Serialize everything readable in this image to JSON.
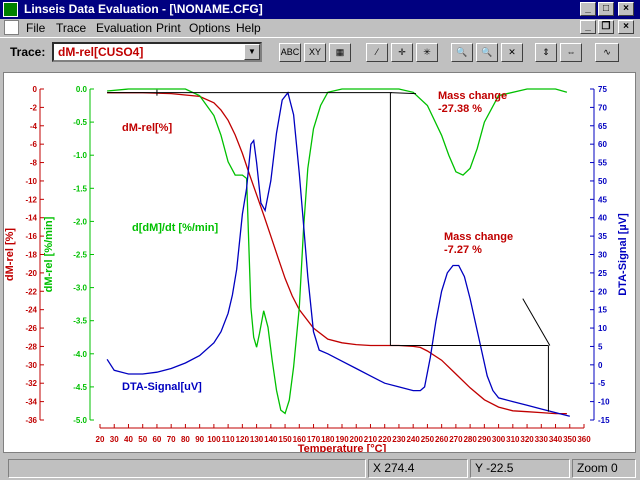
{
  "window": {
    "title": "Linseis Data Evaluation - [\\NONAME.CFG]"
  },
  "menu": [
    "File",
    "Trace",
    "Evaluation",
    "Print",
    "Options",
    "Help"
  ],
  "toolbar": {
    "trace_label": "Trace:",
    "trace_value": "dM-rel[CUSO4]",
    "buttons": [
      "abc-button",
      "xy-button",
      "hatch-button",
      "line-button",
      "cross-plus-button",
      "star-cross-button",
      "zoom-in-button",
      "zoom-1-button",
      "zoom-out-button",
      "fit-vertical-button",
      "fit-horizontal-button",
      "curve-settings-button"
    ]
  },
  "chart_data": {
    "type": "line",
    "xlabel": "Temperature [°C]",
    "xlim": [
      20,
      360
    ],
    "xticks": [
      20,
      30,
      40,
      50,
      60,
      70,
      80,
      90,
      100,
      110,
      120,
      130,
      140,
      150,
      160,
      170,
      180,
      190,
      200,
      210,
      220,
      230,
      240,
      250,
      260,
      270,
      280,
      290,
      300,
      310,
      320,
      330,
      340,
      350,
      360
    ],
    "axes": [
      {
        "id": "dm",
        "label": "dM-rel  [%]",
        "color": "#c00000",
        "lim": [
          -36,
          0
        ],
        "ticks": [
          0,
          -2,
          -4,
          -6,
          -8,
          -10,
          -12,
          -14,
          -16,
          -18,
          -20,
          -22,
          -24,
          -26,
          -28,
          -30,
          -32,
          -34,
          -36
        ]
      },
      {
        "id": "ddm",
        "label": "dM-rel [%/min]",
        "color": "#00c000",
        "lim": [
          -5.0,
          0.0
        ],
        "ticks": [
          0.0,
          -0.5,
          -1.0,
          -1.5,
          -2.0,
          -2.5,
          -3.0,
          -3.5,
          -4.0,
          -4.5,
          -5.0
        ]
      },
      {
        "id": "dta",
        "label": "DTA-Signal  [µV]",
        "color": "#0000c0",
        "lim": [
          -15,
          75
        ],
        "ticks": [
          75,
          70,
          65,
          60,
          55,
          50,
          45,
          40,
          35,
          30,
          25,
          20,
          15,
          10,
          5,
          0,
          -5,
          -10,
          -15
        ]
      }
    ],
    "series": [
      {
        "name": "dM-rel[%]",
        "axis": "dm",
        "color": "#c00000",
        "x": [
          25,
          50,
          70,
          90,
          100,
          105,
          110,
          115,
          120,
          125,
          130,
          135,
          140,
          145,
          150,
          155,
          160,
          170,
          180,
          190,
          200,
          210,
          220,
          230,
          240,
          245,
          250,
          260,
          270,
          280,
          290,
          300,
          310,
          320,
          330,
          340,
          348
        ],
        "y": [
          -0.4,
          -0.4,
          -0.5,
          -0.8,
          -1.5,
          -2.3,
          -3.4,
          -5,
          -7,
          -9.3,
          -11.5,
          -13.7,
          -16,
          -18.3,
          -20.6,
          -22.5,
          -24,
          -26,
          -27.2,
          -27.6,
          -27.8,
          -27.9,
          -27.9,
          -27.9,
          -28,
          -28.1,
          -28.5,
          -29.5,
          -31,
          -32.5,
          -33.8,
          -34.6,
          -35,
          -35.1,
          -35.2,
          -35.3,
          -35.3
        ]
      },
      {
        "name": "d[dM]/dt [%/min]",
        "axis": "ddm",
        "color": "#00c000",
        "x": [
          25,
          40,
          60,
          80,
          90,
          100,
          105,
          110,
          115,
          120,
          123,
          126,
          128,
          130,
          132,
          135,
          138,
          141,
          144,
          147,
          150,
          153,
          156,
          160,
          163,
          166,
          170,
          175,
          180,
          190,
          200,
          210,
          220,
          230,
          240,
          250,
          260,
          265,
          270,
          275,
          280,
          285,
          290,
          300,
          320,
          340,
          348
        ],
        "y": [
          -0.03,
          0.0,
          0.0,
          0.0,
          -0.1,
          -0.4,
          -0.7,
          -1.1,
          -1.3,
          -1.3,
          -1.35,
          -3.3,
          -3.75,
          -3.9,
          -3.7,
          -3.35,
          -3.6,
          -4.1,
          -4.55,
          -4.85,
          -4.9,
          -4.7,
          -4.2,
          -3.3,
          -2.1,
          -1.2,
          -0.6,
          -0.25,
          -0.05,
          0.0,
          0.0,
          0.0,
          0.0,
          0.0,
          -0.05,
          -0.25,
          -0.7,
          -1.0,
          -1.25,
          -1.3,
          -1.2,
          -0.9,
          -0.5,
          -0.1,
          0.0,
          0.0,
          -0.05
        ]
      },
      {
        "name": "DTA-Signal[uV]",
        "axis": "dta",
        "color": "#0000c0",
        "x": [
          25,
          30,
          40,
          50,
          60,
          70,
          80,
          90,
          100,
          105,
          110,
          113,
          116,
          120,
          123,
          126,
          128,
          130,
          133,
          136,
          140,
          144,
          148,
          152,
          156,
          160,
          163,
          166,
          170,
          174,
          180,
          190,
          200,
          210,
          220,
          230,
          240,
          245,
          248,
          252,
          256,
          260,
          264,
          268,
          272,
          276,
          280,
          284,
          288,
          292,
          296,
          300,
          305,
          310,
          320,
          330,
          340,
          350
        ],
        "y": [
          1.5,
          -1.5,
          -2.5,
          -2.5,
          -2,
          -1,
          0.5,
          2.5,
          6,
          9,
          14,
          19,
          26,
          41,
          48,
          60,
          61,
          55,
          44,
          42,
          50,
          63,
          72,
          74,
          68,
          52,
          38,
          24,
          9,
          4,
          3,
          1,
          -1,
          -3,
          -5,
          -6,
          -7,
          -7,
          -6,
          2,
          12,
          20,
          25,
          27,
          27,
          24,
          18,
          11,
          4,
          -3,
          -7,
          -9,
          -9.5,
          -10,
          -11,
          -12,
          -13,
          -14
        ]
      }
    ],
    "annotations": [
      {
        "text_lines": [
          "Mass change",
          "-27.38 %"
        ],
        "color": "#c00000"
      },
      {
        "text_lines": [
          "Mass change",
          "-7.27 %"
        ],
        "color": "#c00000"
      }
    ],
    "series_labels": [
      {
        "text": "dM-rel[%]",
        "color": "#c00000"
      },
      {
        "text": "d[dM]/dt [%/min]",
        "color": "#00c000"
      },
      {
        "text": "DTA-Signal[uV]",
        "color": "#0000c0"
      }
    ],
    "grid": false
  },
  "status": {
    "x": "X  274.4",
    "y": "Y  -22.5",
    "zoom": "Zoom 0"
  }
}
